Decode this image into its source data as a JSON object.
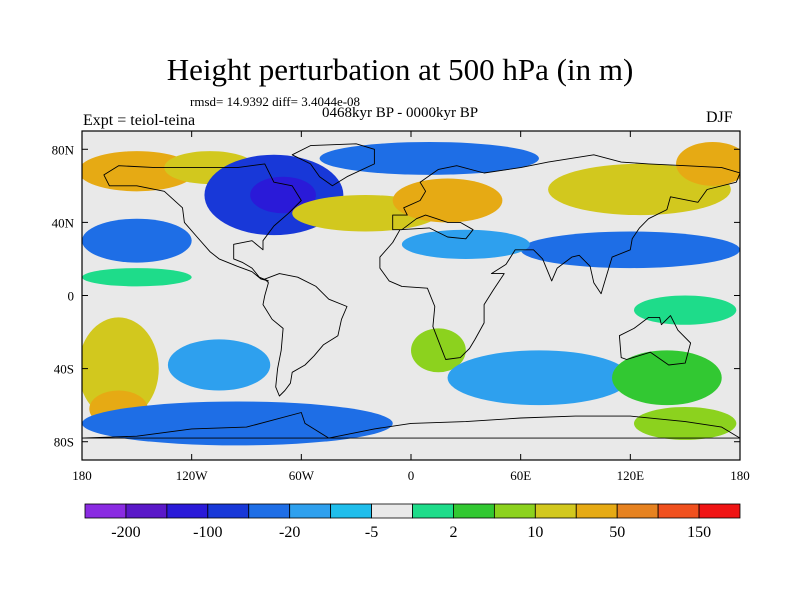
{
  "chart_data": {
    "type": "heatmap",
    "title": "Height perturbation at 500 hPa (in m)",
    "stats_text": "rmsd= 14.9392 diff= 3.4044e-08",
    "left_label": "Expt = teiol-teina",
    "center_label": "0468kyr BP - 0000kyr BP",
    "right_label": "DJF",
    "xlim": [
      -180,
      180
    ],
    "ylim": [
      -90,
      90
    ],
    "x_ticks": [
      {
        "value": -180,
        "label": "180"
      },
      {
        "value": -120,
        "label": "120W"
      },
      {
        "value": -60,
        "label": "60W"
      },
      {
        "value": 0,
        "label": "0"
      },
      {
        "value": 60,
        "label": "60E"
      },
      {
        "value": 120,
        "label": "120E"
      },
      {
        "value": 180,
        "label": "180"
      }
    ],
    "y_ticks": [
      {
        "value": 80,
        "label": "80N"
      },
      {
        "value": 40,
        "label": "40N"
      },
      {
        "value": 0,
        "label": "0"
      },
      {
        "value": -40,
        "label": "40S"
      },
      {
        "value": -80,
        "label": "80S"
      }
    ],
    "colorbar_levels": [
      "-200",
      "-100",
      "-20",
      "-5",
      "2",
      "10",
      "50",
      "150"
    ],
    "colorbar_colors": [
      "#8a2be2",
      "#5a18c8",
      "#2a1ad8",
      "#1838d8",
      "#1e6ee6",
      "#2ea0ee",
      "#20beec",
      "#e9e9e9",
      "#1edc8a",
      "#32c832",
      "#8cd21e",
      "#d2c81e",
      "#e6aa14",
      "#e68220",
      "#f0501e",
      "#f01414"
    ],
    "field_regions": [
      {
        "lon": -150,
        "lat": 68,
        "rlon": 32,
        "rlat": 11,
        "level": 12
      },
      {
        "lon": -110,
        "lat": 70,
        "rlon": 25,
        "rlat": 9,
        "level": 11
      },
      {
        "lon": -75,
        "lat": 55,
        "rlon": 38,
        "rlat": 22,
        "level": 3
      },
      {
        "lon": -70,
        "lat": 55,
        "rlon": 18,
        "rlat": 10,
        "level": 2
      },
      {
        "lon": 10,
        "lat": 75,
        "rlon": 60,
        "rlat": 9,
        "level": 4
      },
      {
        "lon": 125,
        "lat": 58,
        "rlon": 50,
        "rlat": 14,
        "level": 11
      },
      {
        "lon": 165,
        "lat": 72,
        "rlon": 20,
        "rlat": 12,
        "level": 12
      },
      {
        "lon": -25,
        "lat": 45,
        "rlon": 40,
        "rlat": 10,
        "level": 11
      },
      {
        "lon": 20,
        "lat": 52,
        "rlon": 30,
        "rlat": 12,
        "level": 12
      },
      {
        "lon": 120,
        "lat": 25,
        "rlon": 60,
        "rlat": 10,
        "level": 4
      },
      {
        "lon": 30,
        "lat": 28,
        "rlon": 35,
        "rlat": 8,
        "level": 5
      },
      {
        "lon": -150,
        "lat": 30,
        "rlon": 30,
        "rlat": 12,
        "level": 4
      },
      {
        "lon": -150,
        "lat": 10,
        "rlon": 30,
        "rlat": 5,
        "level": 8
      },
      {
        "lon": 150,
        "lat": -8,
        "rlon": 28,
        "rlat": 8,
        "level": 8
      },
      {
        "lon": -160,
        "lat": -40,
        "rlon": 22,
        "rlat": 28,
        "level": 11
      },
      {
        "lon": -160,
        "lat": -62,
        "rlon": 16,
        "rlat": 10,
        "level": 12
      },
      {
        "lon": -105,
        "lat": -38,
        "rlon": 28,
        "rlat": 14,
        "level": 5
      },
      {
        "lon": -95,
        "lat": -70,
        "rlon": 85,
        "rlat": 12,
        "level": 4
      },
      {
        "lon": 15,
        "lat": -30,
        "rlon": 15,
        "rlat": 12,
        "level": 10
      },
      {
        "lon": 70,
        "lat": -45,
        "rlon": 50,
        "rlat": 15,
        "level": 5
      },
      {
        "lon": 140,
        "lat": -45,
        "rlon": 30,
        "rlat": 15,
        "level": 9
      },
      {
        "lon": 150,
        "lat": -70,
        "rlon": 28,
        "rlat": 9,
        "level": 10
      }
    ]
  }
}
